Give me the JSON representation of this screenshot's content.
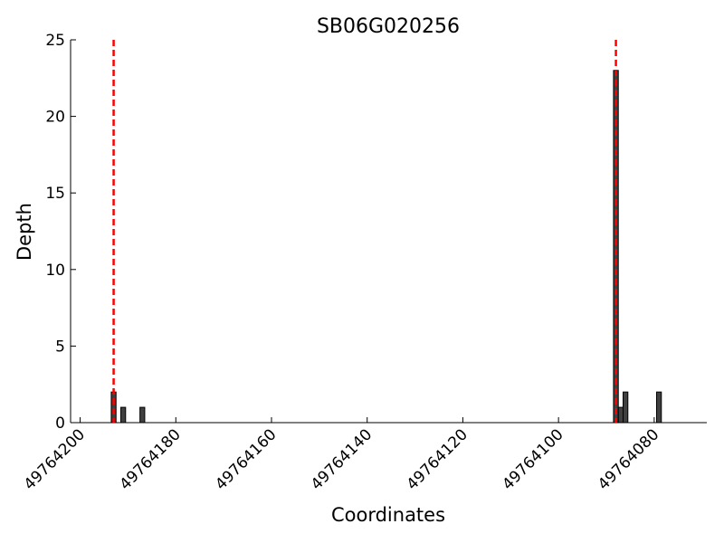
{
  "chart_data": {
    "type": "bar",
    "title": "SB06G020256",
    "xlabel": "Coordinates",
    "ylabel": "Depth",
    "x": [
      49764193,
      49764191,
      49764187,
      49764088,
      49764087,
      49764086,
      49764079
    ],
    "values": [
      2,
      1,
      1,
      23,
      1,
      2,
      2
    ],
    "color": "#404040",
    "xlim": [
      49764202,
      49764069
    ],
    "xticks": [
      49764200,
      49764180,
      49764160,
      49764140,
      49764120,
      49764100,
      49764080
    ],
    "ylim": [
      0,
      25
    ],
    "yticks": [
      0,
      5,
      10,
      15,
      20,
      25
    ],
    "vlines": [
      49764193,
      49764088
    ],
    "vline_color": "#ff0000"
  }
}
